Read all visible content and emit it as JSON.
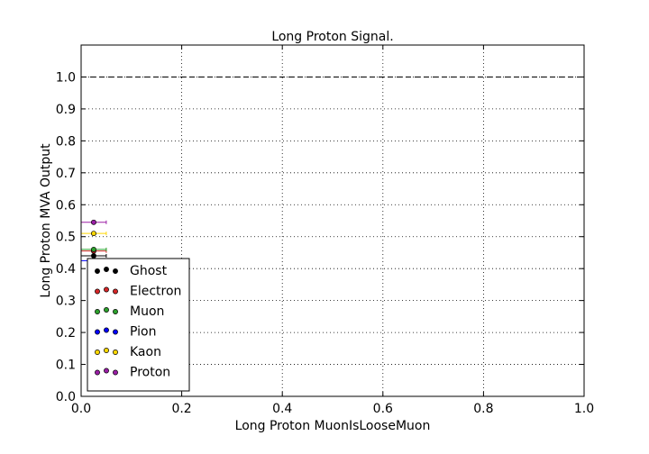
{
  "chart_data": {
    "type": "scatter",
    "title": "Long Proton Signal.",
    "xlabel": "Long Proton MuonIsLooseMuon",
    "ylabel": "Long Proton MVA Output",
    "xlim": [
      0.0,
      1.0
    ],
    "ylim": [
      0.0,
      1.1
    ],
    "x_ticks": [
      "0.0",
      "0.2",
      "0.4",
      "0.6",
      "0.8",
      "1.0"
    ],
    "y_ticks": [
      "0.0",
      "0.1",
      "0.2",
      "0.3",
      "0.4",
      "0.5",
      "0.6",
      "0.7",
      "0.8",
      "0.9",
      "1.0"
    ],
    "grid": true,
    "reference_line": {
      "y": 1.0,
      "style": "dashed",
      "color": "#000000"
    },
    "legend_position": "lower-left",
    "series": [
      {
        "name": "Ghost",
        "color": "#000000",
        "points": [
          {
            "x": 0.025,
            "y": 0.44,
            "xerr": 0.025
          }
        ]
      },
      {
        "name": "Electron",
        "color": "#d62728",
        "points": [
          {
            "x": 0.025,
            "y": 0.455,
            "xerr": 0.025
          }
        ]
      },
      {
        "name": "Muon",
        "color": "#2ca02c",
        "points": [
          {
            "x": 0.025,
            "y": 0.46,
            "xerr": 0.025
          }
        ]
      },
      {
        "name": "Pion",
        "color": "#0000ff",
        "points": [
          {
            "x": 0.025,
            "y": 0.425,
            "xerr": 0.025
          }
        ]
      },
      {
        "name": "Kaon",
        "color": "#ffd700",
        "points": [
          {
            "x": 0.025,
            "y": 0.51,
            "xerr": 0.025
          }
        ]
      },
      {
        "name": "Proton",
        "color": "#9b1fa6",
        "points": [
          {
            "x": 0.025,
            "y": 0.545,
            "xerr": 0.025
          }
        ]
      }
    ]
  }
}
